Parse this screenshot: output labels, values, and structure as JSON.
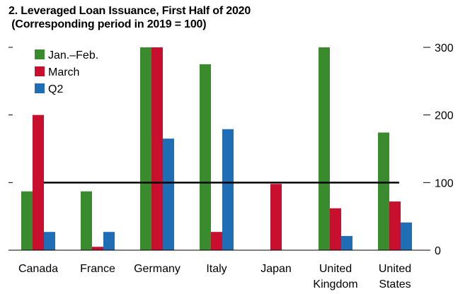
{
  "title_line1": "2. Leveraged Loan Issuance, First Half of 2020",
  "title_line2": "(Corresponding period in 2019 = 100)",
  "chart_data": {
    "type": "bar",
    "categories": [
      [
        "Canada"
      ],
      [
        "France"
      ],
      [
        "Germany"
      ],
      [
        "Italy"
      ],
      [
        "Japan"
      ],
      [
        "United",
        "Kingdom"
      ],
      [
        "United",
        "States"
      ]
    ],
    "series": [
      {
        "name": "Jan.–Feb.",
        "color": "#3a8a2e",
        "values": [
          87,
          87,
          300,
          275,
          0,
          300,
          174
        ]
      },
      {
        "name": "March",
        "color": "#c8102e",
        "values": [
          200,
          5,
          300,
          27,
          98,
          62,
          72
        ]
      },
      {
        "name": "Q2",
        "color": "#1f6db5",
        "values": [
          27,
          27,
          165,
          179,
          0,
          21,
          41
        ]
      }
    ],
    "ylim": [
      0,
      300
    ],
    "yticks": [
      0,
      100,
      200,
      300
    ],
    "reference_line": 100,
    "legend": "top-left",
    "grid": false
  }
}
